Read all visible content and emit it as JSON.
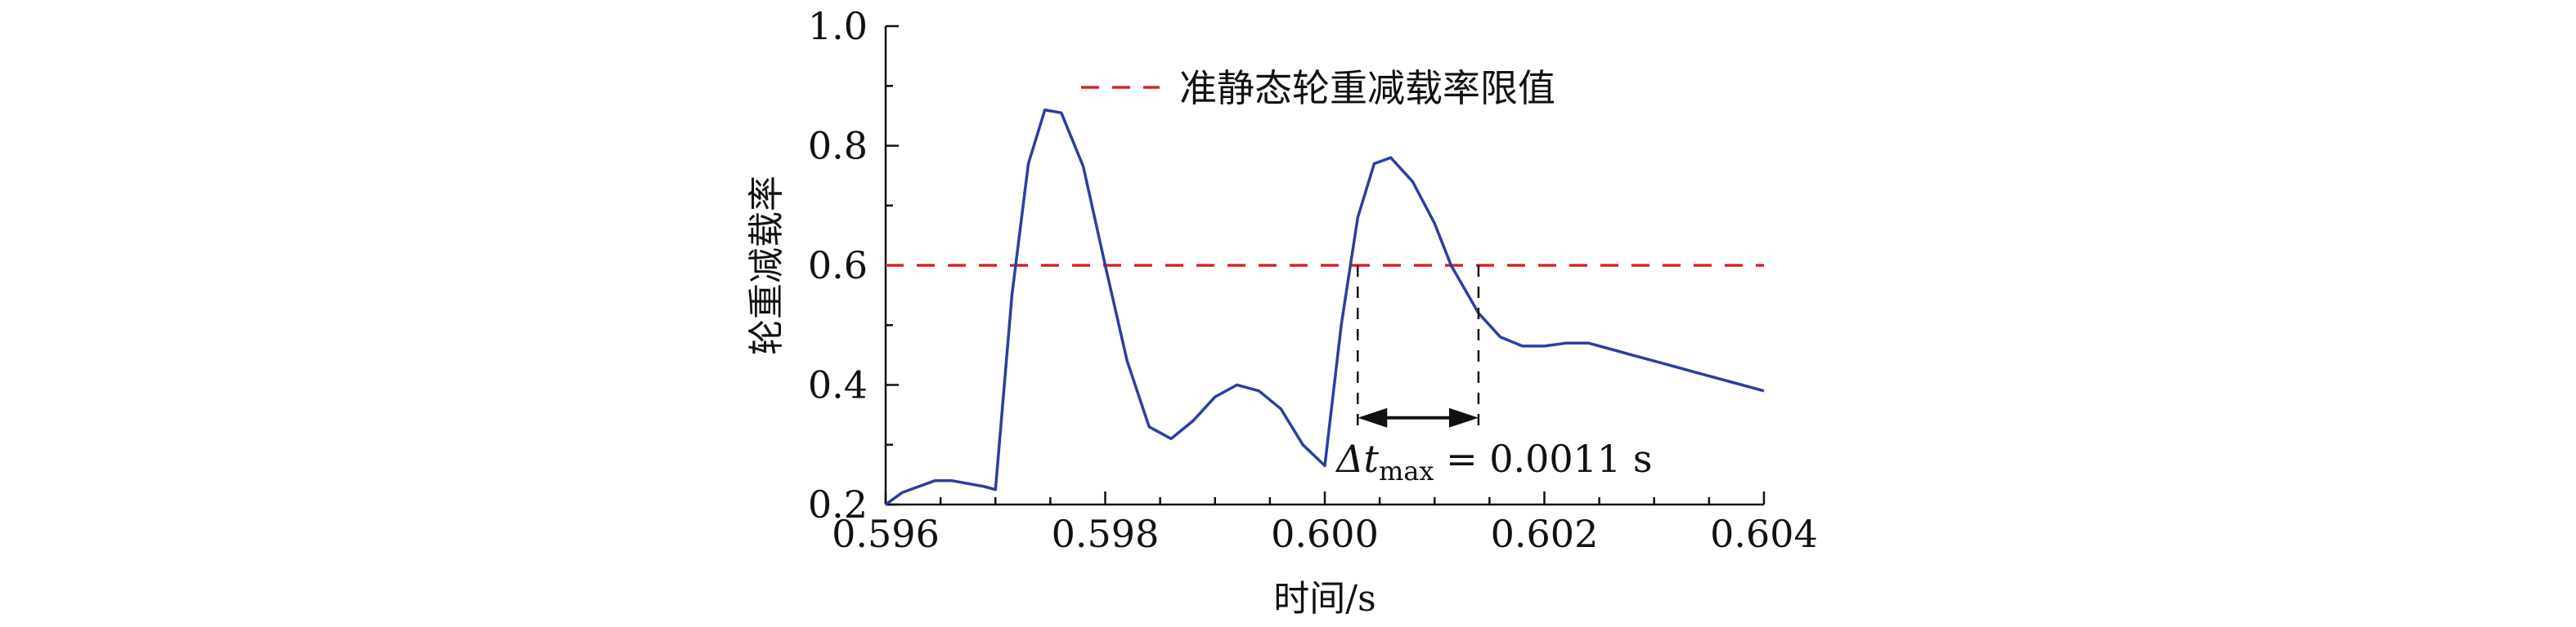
{
  "chart_data": {
    "type": "line",
    "x": [
      0.596,
      0.59615,
      0.5963,
      0.59645,
      0.5966,
      0.5969,
      0.597,
      0.59715,
      0.5973,
      0.59745,
      0.5976,
      0.5978,
      0.598,
      0.5982,
      0.5984,
      0.5986,
      0.5988,
      0.599,
      0.5992,
      0.5994,
      0.5996,
      0.5998,
      0.6,
      0.60015,
      0.6003,
      0.60045,
      0.6006,
      0.6008,
      0.601,
      0.60115,
      0.6014,
      0.6016,
      0.6018,
      0.602,
      0.6022,
      0.6024,
      0.6026,
      0.6028,
      0.603,
      0.6032,
      0.6034,
      0.6036,
      0.6038,
      0.604
    ],
    "series": [
      {
        "color": "#2b3fa0",
        "values": [
          0.2,
          0.22,
          0.23,
          0.24,
          0.24,
          0.23,
          0.225,
          0.55,
          0.77,
          0.86,
          0.855,
          0.765,
          0.6,
          0.44,
          0.33,
          0.31,
          0.34,
          0.38,
          0.4,
          0.39,
          0.36,
          0.3,
          0.265,
          0.5,
          0.68,
          0.77,
          0.78,
          0.74,
          0.67,
          0.6,
          0.52,
          0.48,
          0.465,
          0.465,
          0.47,
          0.47,
          0.46,
          0.45,
          0.44,
          0.43,
          0.42,
          0.41,
          0.4,
          0.39
        ]
      }
    ],
    "threshold": {
      "value": 0.6,
      "color": "#d8232a",
      "label": "准静态轮重减载率限值"
    },
    "annotation": {
      "x_start": 0.6003,
      "x_end": 0.6014,
      "arrow_y": 0.345,
      "label_prefix": "Δt",
      "label_sub": "max",
      "label_rest": " = 0.0011 s"
    },
    "xlabel": "时间/s",
    "ylabel": "轮重减载率",
    "xlim": [
      0.596,
      0.604
    ],
    "ylim": [
      0.2,
      1.0
    ],
    "xticks": [
      {
        "v": 0.596,
        "label": "0.596"
      },
      {
        "v": 0.598,
        "label": "0.598"
      },
      {
        "v": 0.6,
        "label": "0.600"
      },
      {
        "v": 0.602,
        "label": "0.602"
      },
      {
        "v": 0.604,
        "label": "0.604"
      }
    ],
    "yticks": [
      {
        "v": 0.2,
        "label": "0.2"
      },
      {
        "v": 0.4,
        "label": "0.4"
      },
      {
        "v": 0.6,
        "label": "0.6"
      },
      {
        "v": 0.8,
        "label": "0.8"
      },
      {
        "v": 1.0,
        "label": "1.0"
      }
    ],
    "minor_xticks": [
      0.5965,
      0.597,
      0.5975,
      0.5985,
      0.599,
      0.5995,
      0.6005,
      0.601,
      0.6015,
      0.6025,
      0.603,
      0.6035
    ],
    "minor_yticks": [
      0.3,
      0.5,
      0.7,
      0.9
    ],
    "legend_position": "top",
    "grid": false
  }
}
